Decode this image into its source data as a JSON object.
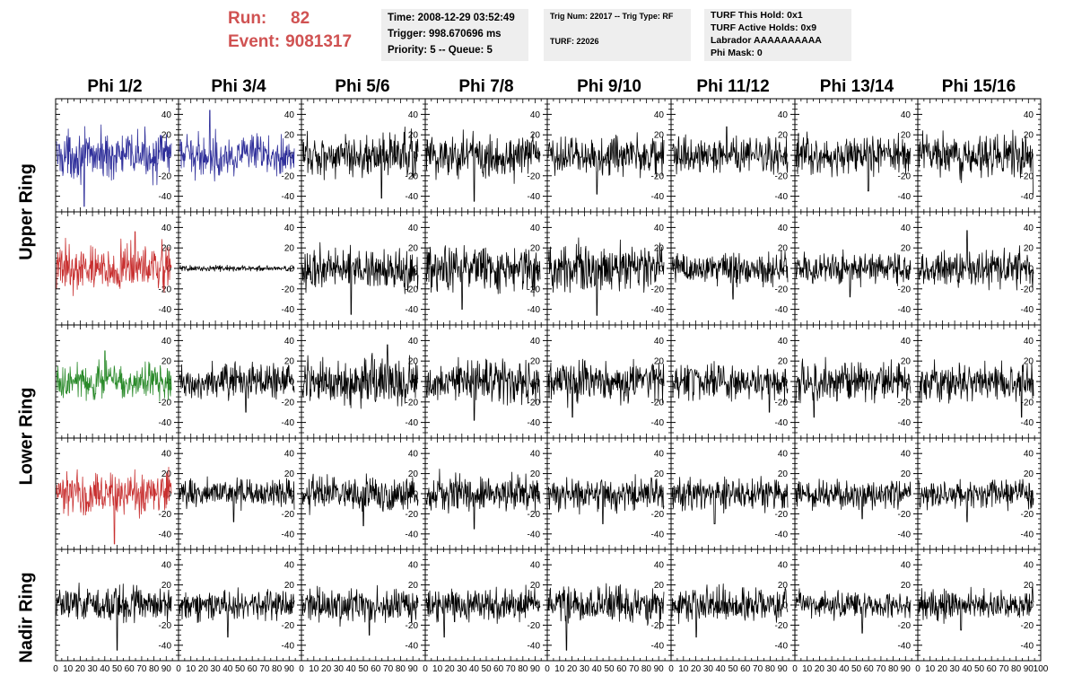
{
  "header": {
    "run_label": "Run:",
    "run_value": "82",
    "event_label": "Event:",
    "event_value": "9081317",
    "time_line": "Time: 2008-12-29 03:52:49",
    "trigger_line": "Trigger: 998.670696 ms",
    "priority_line": "Priority: 5 -- Queue: 5",
    "trig_num_line": "Trig Num: 22017 -- Trig Type: RF",
    "turf_line": "TURF: 22026",
    "turf_hold_line": "TURF This Hold: 0x1",
    "turf_active_line": "TURF Active Holds: 0x9",
    "labrador_line": "Labrador AAAAAAAAAA",
    "phi_mask_line": "Phi Mask: 0"
  },
  "columns": [
    "Phi 1/2",
    "Phi 3/4",
    "Phi 5/6",
    "Phi 7/8",
    "Phi 9/10",
    "Phi 11/12",
    "Phi 13/14",
    "Phi 15/16"
  ],
  "row_labels": [
    {
      "text": "Upper Ring",
      "position": "upper"
    },
    {
      "text": "Lower Ring",
      "position": "lower"
    },
    {
      "text": "Nadir Ring",
      "position": "nadir"
    }
  ],
  "chart_data": {
    "type": "line",
    "grid": false,
    "xlim": [
      0,
      100
    ],
    "ylim": [
      -50,
      50
    ],
    "yticks": [
      -40,
      -20,
      0,
      20,
      40
    ],
    "xticks": [
      0,
      10,
      20,
      30,
      40,
      50,
      60,
      70,
      80,
      90,
      100
    ],
    "colors": {
      "blue": "#2f2f9a",
      "red": "#c83030",
      "green": "#2a8a2a",
      "black": "#000000"
    },
    "panels": [
      {
        "row": 0,
        "col": 0,
        "color": "blue",
        "amplitude": 16,
        "spike": [
          -50,
          23
        ]
      },
      {
        "row": 0,
        "col": 1,
        "color": "blue",
        "amplitude": 14,
        "spike": [
          44,
          25
        ]
      },
      {
        "row": 0,
        "col": 2,
        "color": "black",
        "amplitude": 15,
        "spike": [
          -42,
          65
        ]
      },
      {
        "row": 0,
        "col": 3,
        "color": "black",
        "amplitude": 17,
        "spike": [
          -45,
          40
        ]
      },
      {
        "row": 0,
        "col": 4,
        "color": "black",
        "amplitude": 14,
        "spike": [
          -38,
          40
        ]
      },
      {
        "row": 0,
        "col": 5,
        "color": "black",
        "amplitude": 12,
        "spike": [
          28,
          45
        ]
      },
      {
        "row": 0,
        "col": 6,
        "color": "black",
        "amplitude": 13,
        "spike": [
          -35,
          60
        ]
      },
      {
        "row": 0,
        "col": 7,
        "color": "black",
        "amplitude": 14,
        "spike": [
          -38,
          95
        ]
      },
      {
        "row": 1,
        "col": 0,
        "color": "red",
        "amplitude": 16,
        "spike": [
          36,
          65
        ]
      },
      {
        "row": 1,
        "col": 1,
        "color": "black",
        "amplitude": 2,
        "spike": [
          0,
          0
        ]
      },
      {
        "row": 1,
        "col": 2,
        "color": "black",
        "amplitude": 14,
        "spike": [
          -45,
          40
        ]
      },
      {
        "row": 1,
        "col": 3,
        "color": "black",
        "amplitude": 15,
        "spike": [
          -40,
          30
        ]
      },
      {
        "row": 1,
        "col": 4,
        "color": "black",
        "amplitude": 16,
        "spike": [
          -46,
          40
        ]
      },
      {
        "row": 1,
        "col": 5,
        "color": "black",
        "amplitude": 11,
        "spike": [
          -30,
          50
        ]
      },
      {
        "row": 1,
        "col": 6,
        "color": "black",
        "amplitude": 11,
        "spike": [
          -28,
          45
        ]
      },
      {
        "row": 1,
        "col": 7,
        "color": "black",
        "amplitude": 13,
        "spike": [
          37,
          40
        ]
      },
      {
        "row": 2,
        "col": 0,
        "color": "green",
        "amplitude": 13,
        "spike": [
          30,
          40
        ]
      },
      {
        "row": 2,
        "col": 1,
        "color": "black",
        "amplitude": 12,
        "spike": [
          -30,
          55
        ]
      },
      {
        "row": 2,
        "col": 2,
        "color": "black",
        "amplitude": 16,
        "spike": [
          36,
          70
        ]
      },
      {
        "row": 2,
        "col": 3,
        "color": "black",
        "amplitude": 15,
        "spike": [
          -38,
          40
        ]
      },
      {
        "row": 2,
        "col": 4,
        "color": "black",
        "amplitude": 14,
        "spike": [
          -35,
          20
        ]
      },
      {
        "row": 2,
        "col": 5,
        "color": "black",
        "amplitude": 12,
        "spike": [
          -30,
          80
        ]
      },
      {
        "row": 2,
        "col": 6,
        "color": "black",
        "amplitude": 14,
        "spike": [
          -35,
          15
        ]
      },
      {
        "row": 2,
        "col": 7,
        "color": "black",
        "amplitude": 13,
        "spike": [
          -35,
          85
        ]
      },
      {
        "row": 3,
        "col": 0,
        "color": "red",
        "amplitude": 16,
        "spike": [
          -50,
          48
        ]
      },
      {
        "row": 3,
        "col": 1,
        "color": "black",
        "amplitude": 10,
        "spike": [
          -28,
          45
        ]
      },
      {
        "row": 3,
        "col": 2,
        "color": "black",
        "amplitude": 12,
        "spike": [
          -32,
          50
        ]
      },
      {
        "row": 3,
        "col": 3,
        "color": "black",
        "amplitude": 13,
        "spike": [
          -35,
          40
        ]
      },
      {
        "row": 3,
        "col": 4,
        "color": "black",
        "amplitude": 12,
        "spike": [
          -30,
          45
        ]
      },
      {
        "row": 3,
        "col": 5,
        "color": "black",
        "amplitude": 11,
        "spike": [
          -30,
          35
        ]
      },
      {
        "row": 3,
        "col": 6,
        "color": "black",
        "amplitude": 10,
        "spike": [
          -25,
          55
        ]
      },
      {
        "row": 3,
        "col": 7,
        "color": "black",
        "amplitude": 11,
        "spike": [
          -28,
          40
        ]
      },
      {
        "row": 4,
        "col": 0,
        "color": "black",
        "amplitude": 13,
        "spike": [
          -45,
          50
        ]
      },
      {
        "row": 4,
        "col": 1,
        "color": "black",
        "amplitude": 11,
        "spike": [
          -32,
          40
        ]
      },
      {
        "row": 4,
        "col": 2,
        "color": "black",
        "amplitude": 12,
        "spike": [
          -30,
          55
        ]
      },
      {
        "row": 4,
        "col": 3,
        "color": "black",
        "amplitude": 12,
        "spike": [
          -32,
          15
        ]
      },
      {
        "row": 4,
        "col": 4,
        "color": "black",
        "amplitude": 13,
        "spike": [
          -45,
          15
        ]
      },
      {
        "row": 4,
        "col": 5,
        "color": "black",
        "amplitude": 12,
        "spike": [
          -32,
          20
        ]
      },
      {
        "row": 4,
        "col": 6,
        "color": "black",
        "amplitude": 10,
        "spike": [
          -28,
          55
        ]
      },
      {
        "row": 4,
        "col": 7,
        "color": "black",
        "amplitude": 10,
        "spike": [
          -25,
          35
        ]
      }
    ]
  }
}
